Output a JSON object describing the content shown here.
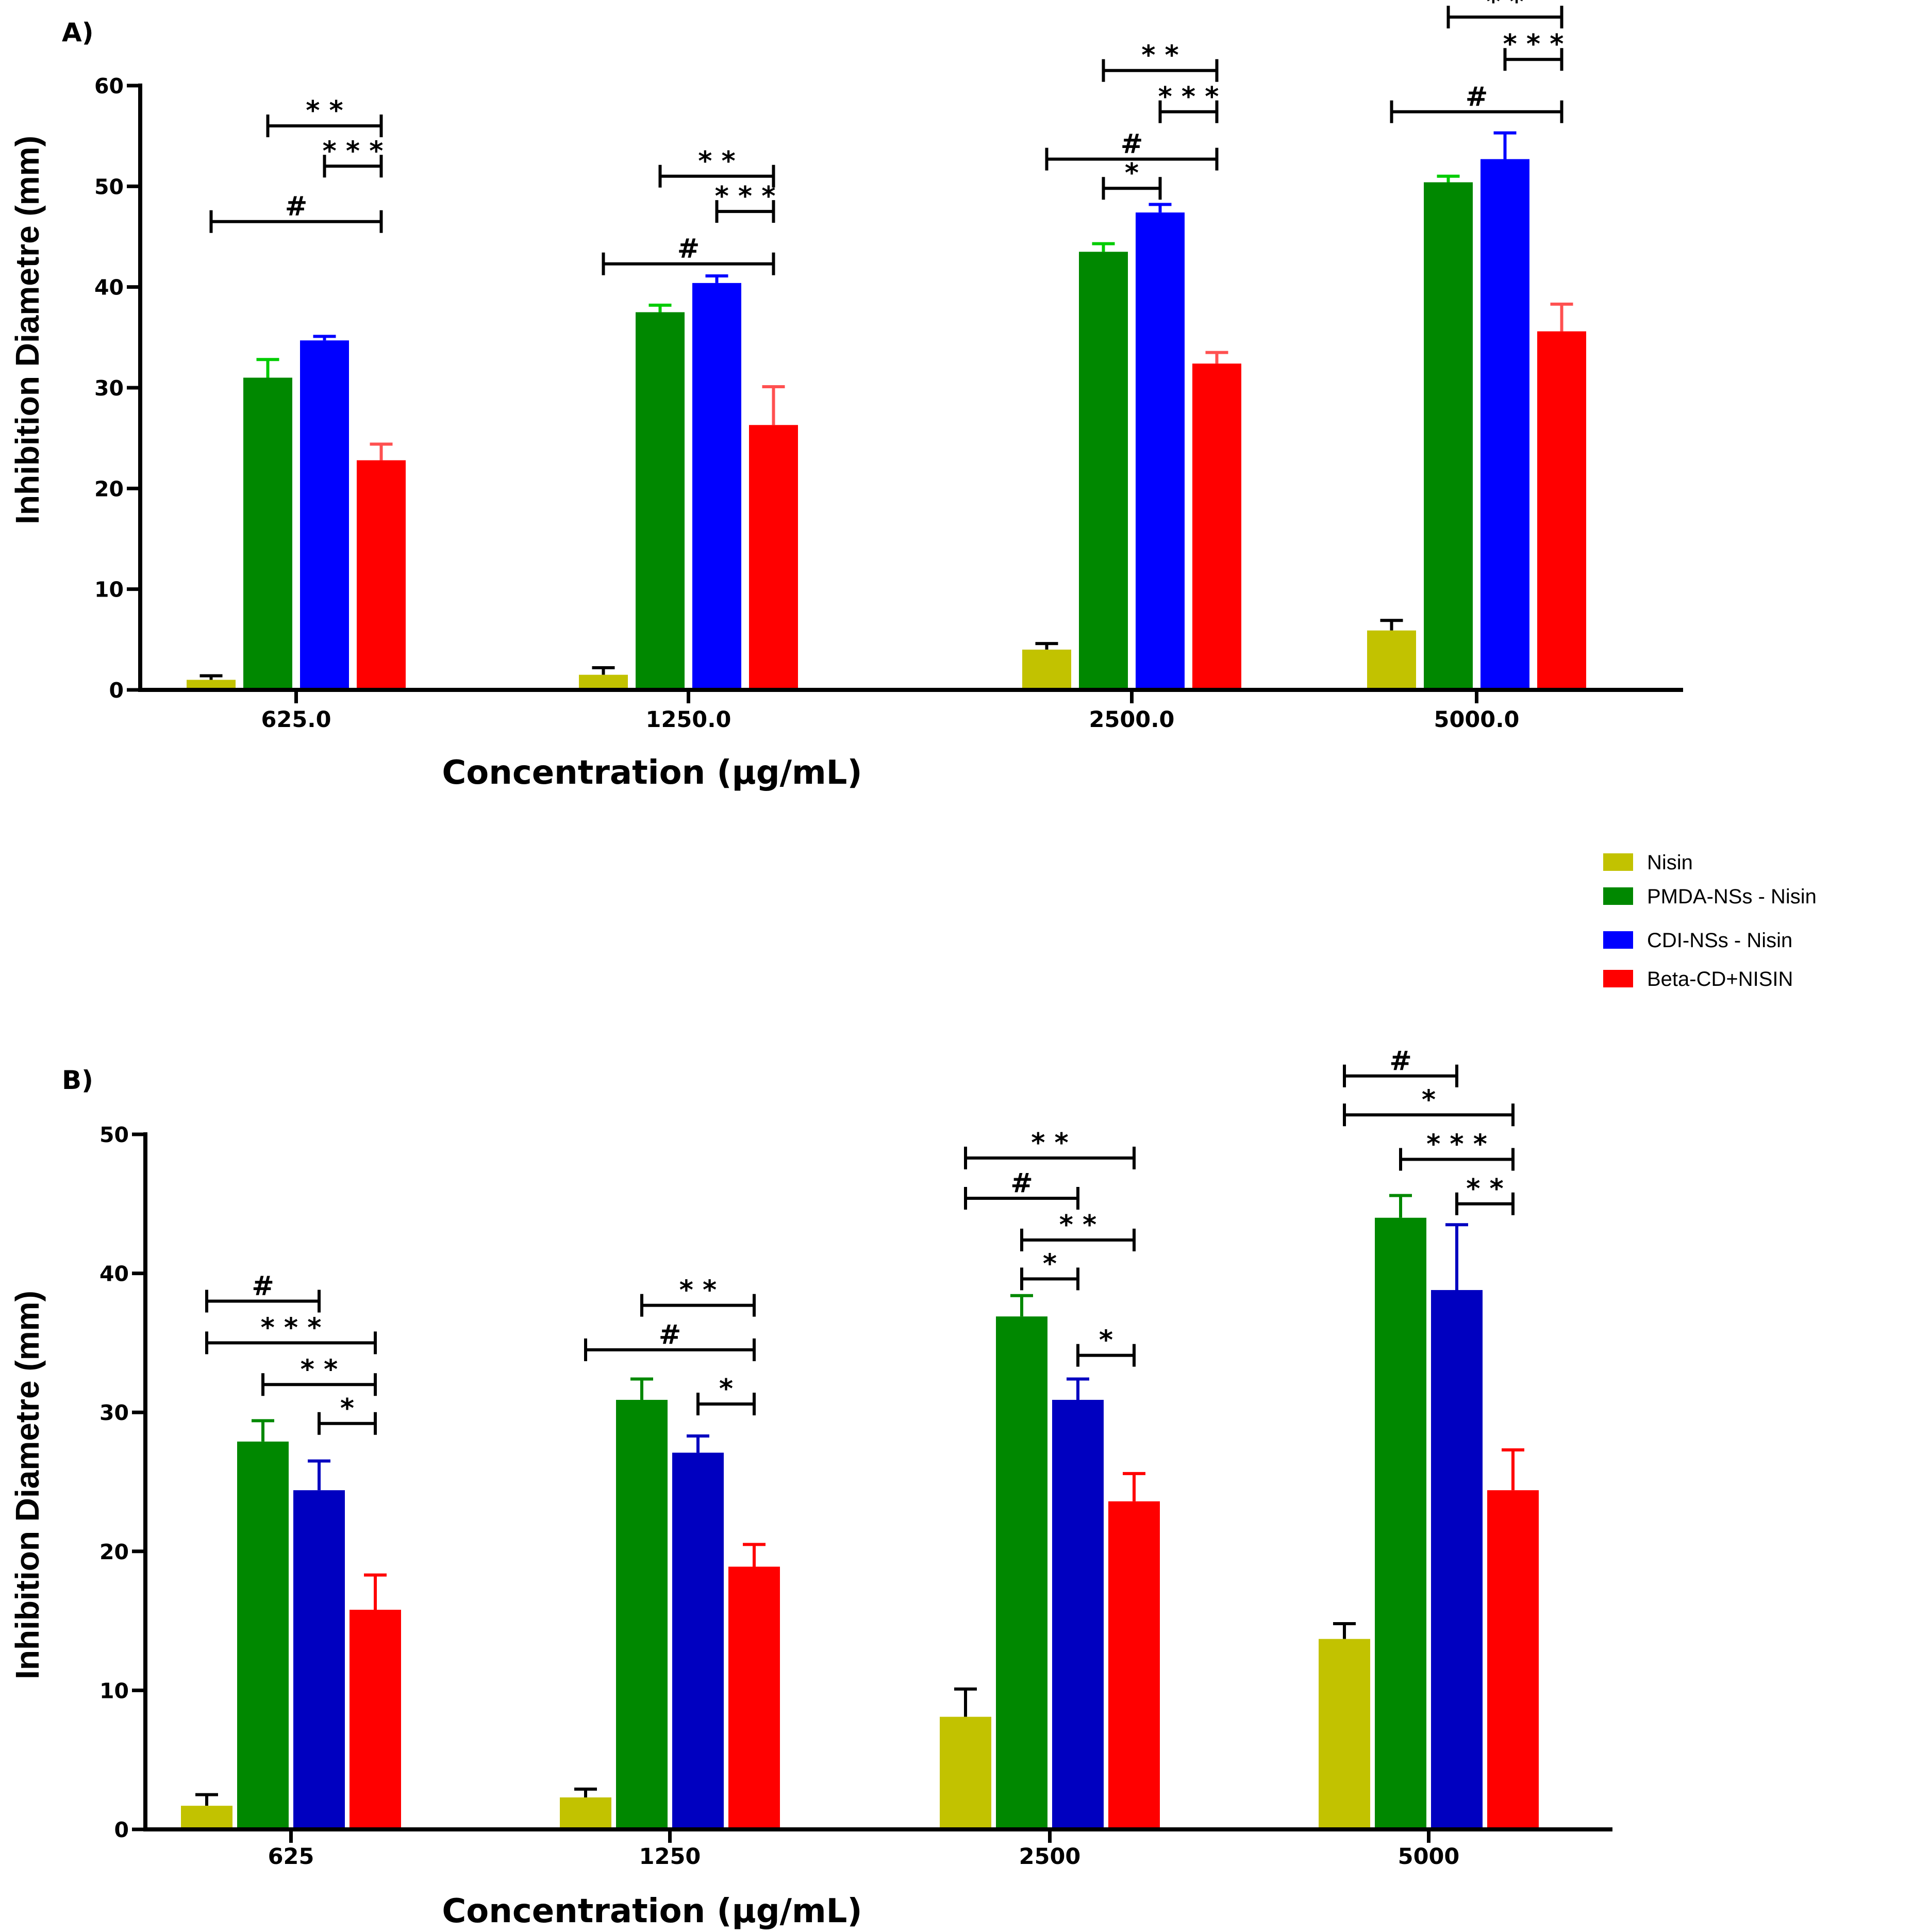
{
  "chart_data": [
    {
      "type": "bar",
      "panel": "A)",
      "xlabel": "Concentration (µg/mL)",
      "ylabel": "Inhibition Diametre (mm)",
      "ylim": [
        0,
        60
      ],
      "yticks": [
        0,
        10,
        20,
        30,
        40,
        50,
        60
      ],
      "categories": [
        "625.0",
        "1250.0",
        "2500.0",
        "5000.0"
      ],
      "series": [
        {
          "name": "Nisin",
          "values": [
            1.0,
            1.5,
            4.0,
            5.9
          ],
          "errors": [
            0.4,
            0.7,
            0.6,
            1.0
          ]
        },
        {
          "name": "PMDA-NSs - Nisin",
          "values": [
            31.0,
            37.5,
            43.5,
            50.4
          ],
          "errors": [
            1.8,
            0.7,
            0.8,
            0.6
          ]
        },
        {
          "name": "CDI-NSs - Nisin",
          "values": [
            34.7,
            40.4,
            47.4,
            52.7
          ],
          "errors": [
            0.4,
            0.7,
            0.8,
            2.6
          ]
        },
        {
          "name": "Beta-CD+NISIN",
          "values": [
            22.8,
            26.3,
            32.4,
            35.6
          ],
          "errors": [
            1.6,
            3.8,
            1.1,
            2.7
          ]
        }
      ],
      "significance": [
        {
          "group": 0,
          "from": 1,
          "to": 3,
          "label": "**",
          "level": 56
        },
        {
          "group": 0,
          "from": 2,
          "to": 3,
          "label": "***",
          "level": 52
        },
        {
          "group": 0,
          "from": 0,
          "to": 3,
          "label": "#",
          "level": 46.5
        },
        {
          "group": 1,
          "from": 1,
          "to": 3,
          "label": "**",
          "level": 51
        },
        {
          "group": 1,
          "from": 2,
          "to": 3,
          "label": "***",
          "level": 47.5
        },
        {
          "group": 1,
          "from": 0,
          "to": 3,
          "label": "#",
          "level": 42.3
        },
        {
          "group": 2,
          "from": 1,
          "to": 3,
          "label": "**",
          "level": 61.5
        },
        {
          "group": 2,
          "from": 2,
          "to": 3,
          "label": "***",
          "level": 57.4
        },
        {
          "group": 2,
          "from": 0,
          "to": 3,
          "label": "#",
          "level": 52.7
        },
        {
          "group": 2,
          "from": 1,
          "to": 2,
          "label": "*",
          "level": 49.8
        },
        {
          "group": 3,
          "from": 1,
          "to": 3,
          "label": "**",
          "level": 66.8
        },
        {
          "group": 3,
          "from": 2,
          "to": 3,
          "label": "***",
          "level": 62.6
        },
        {
          "group": 3,
          "from": 0,
          "to": 3,
          "label": "#",
          "level": 57.4
        }
      ]
    },
    {
      "type": "bar",
      "panel": "B)",
      "xlabel": "Concentration (µg/mL)",
      "ylabel": "Inhibition Diametre (mm)",
      "ylim": [
        0,
        50
      ],
      "yticks": [
        0,
        10,
        20,
        30,
        40,
        50
      ],
      "categories": [
        "625",
        "1250",
        "2500",
        "5000"
      ],
      "series": [
        {
          "name": "Nisin",
          "values": [
            1.7,
            2.3,
            8.1,
            13.7
          ],
          "errors": [
            0.8,
            0.6,
            2.0,
            1.1
          ]
        },
        {
          "name": "PMDA-NSs - Nisin",
          "values": [
            27.9,
            30.9,
            36.9,
            44.0
          ],
          "errors": [
            1.5,
            1.5,
            1.5,
            1.6
          ]
        },
        {
          "name": "CDI-NSs - Nisin",
          "values": [
            24.4,
            27.1,
            30.9,
            38.8
          ],
          "errors": [
            2.1,
            1.2,
            1.5,
            4.7
          ]
        },
        {
          "name": "Beta-CD+NISIN",
          "values": [
            15.8,
            18.9,
            23.6,
            24.4
          ],
          "errors": [
            2.5,
            1.6,
            2.0,
            2.9
          ]
        }
      ],
      "significance": [
        {
          "group": 0,
          "from": 0,
          "to": 2,
          "label": "#",
          "level": 38.0
        },
        {
          "group": 0,
          "from": 0,
          "to": 3,
          "label": "***",
          "level": 35.0
        },
        {
          "group": 0,
          "from": 1,
          "to": 3,
          "label": "**",
          "level": 32.0
        },
        {
          "group": 0,
          "from": 2,
          "to": 3,
          "label": "*",
          "level": 29.2
        },
        {
          "group": 1,
          "from": 1,
          "to": 3,
          "label": "**",
          "level": 37.7
        },
        {
          "group": 1,
          "from": 0,
          "to": 3,
          "label": "#",
          "level": 34.5
        },
        {
          "group": 1,
          "from": 2,
          "to": 3,
          "label": "*",
          "level": 30.6
        },
        {
          "group": 2,
          "from": 0,
          "to": 3,
          "label": "**",
          "level": 48.3
        },
        {
          "group": 2,
          "from": 0,
          "to": 2,
          "label": "#",
          "level": 45.4
        },
        {
          "group": 2,
          "from": 1,
          "to": 3,
          "label": "**",
          "level": 42.4
        },
        {
          "group": 2,
          "from": 1,
          "to": 2,
          "label": "*",
          "level": 39.6
        },
        {
          "group": 2,
          "from": 2,
          "to": 3,
          "label": "*",
          "level": 34.1
        },
        {
          "group": 3,
          "from": 0,
          "to": 2,
          "label": "#",
          "level": 54.2
        },
        {
          "group": 3,
          "from": 0,
          "to": 3,
          "label": "*",
          "level": 51.4
        },
        {
          "group": 3,
          "from": 1,
          "to": 3,
          "label": "***",
          "level": 48.2
        },
        {
          "group": 3,
          "from": 2,
          "to": 3,
          "label": "**",
          "level": 45.0
        }
      ]
    }
  ],
  "legend": [
    {
      "label": "Nisin",
      "color": "#c2c200"
    },
    {
      "label": "PMDA-NSs - Nisin",
      "color": "#008800"
    },
    {
      "label": "CDI-NSs - Nisin",
      "color": "#0000ff"
    },
    {
      "label": "Beta-CD+NISIN",
      "color": "#ff0000"
    }
  ],
  "colors": {
    "panelA": [
      "#c2c200",
      "#008800",
      "#0000ff",
      "#ff0000"
    ],
    "panelA_err": [
      "#000000",
      "#00cc00",
      "#0000ff",
      "#ff5050"
    ],
    "panelB": [
      "#c2c200",
      "#008800",
      "#0000c0",
      "#ff0000"
    ],
    "panelB_err": [
      "#000000",
      "#008800",
      "#0000c0",
      "#ff0000"
    ]
  }
}
